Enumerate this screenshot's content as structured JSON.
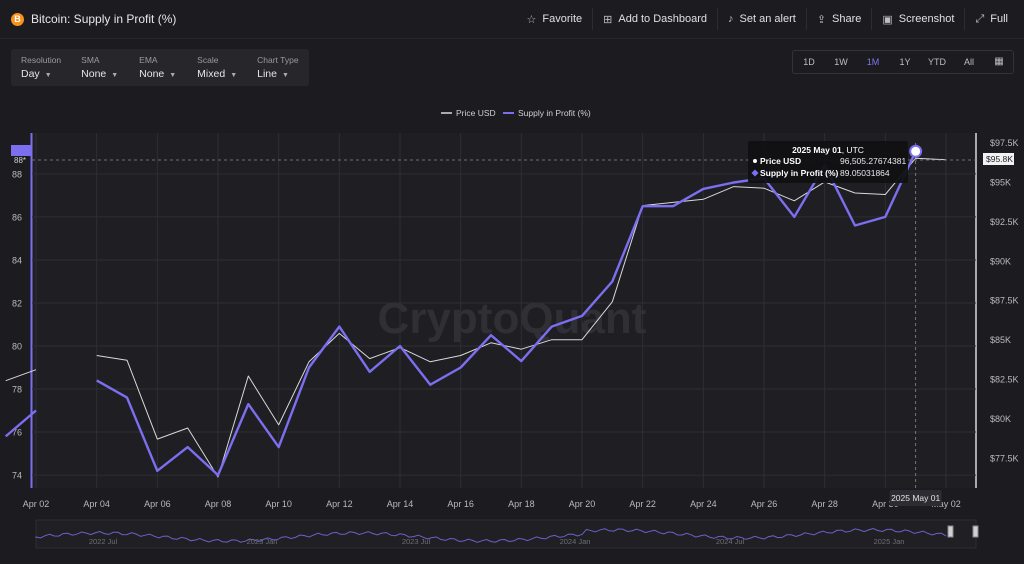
{
  "header": {
    "title": "Bitcoin: Supply in Profit (%)",
    "coin_symbol": "B",
    "actions": [
      {
        "name": "favorite",
        "label": "Favorite",
        "icon": "☆"
      },
      {
        "name": "add-to-dashboard",
        "label": "Add to Dashboard",
        "icon": "⊞"
      },
      {
        "name": "set-alert",
        "label": "Set an alert",
        "icon": "♪"
      },
      {
        "name": "share",
        "label": "Share",
        "icon": "⇪"
      },
      {
        "name": "screenshot",
        "label": "Screenshot",
        "icon": "▣"
      },
      {
        "name": "full",
        "label": "Full",
        "icon": "⤢"
      }
    ]
  },
  "controls": [
    {
      "label": "Resolution",
      "value": "Day"
    },
    {
      "label": "SMA",
      "value": "None"
    },
    {
      "label": "EMA",
      "value": "None"
    },
    {
      "label": "Scale",
      "value": "Mixed"
    },
    {
      "label": "Chart Type",
      "value": "Line"
    }
  ],
  "ranges": [
    "1D",
    "1W",
    "1M",
    "1Y",
    "YTD",
    "All"
  ],
  "active_range": "1M",
  "watermark": "CryptoQuant",
  "tooltip": {
    "date": "2025 May 01",
    "tz": ", UTC",
    "rows": [
      {
        "label": "Price USD",
        "value": "96,505.27674381"
      },
      {
        "label": "Supply in Profit (%)",
        "value": "89.05031864"
      }
    ]
  },
  "crosshair": {
    "left_label": "88*",
    "right_label": "$95.8K",
    "x_label": "2025 May 01"
  },
  "colors": {
    "price": "#d9d9d9",
    "supply": "#7b6ff0",
    "background": "#1c1c20",
    "grid": "#2e2e33"
  },
  "chart_data": {
    "type": "line",
    "legend_position": "top-center",
    "grid": true,
    "x": [
      "2025-04-01",
      "2025-04-02",
      "2025-04-03",
      "2025-04-04",
      "2025-04-05",
      "2025-04-06",
      "2025-04-07",
      "2025-04-08",
      "2025-04-09",
      "2025-04-10",
      "2025-04-11",
      "2025-04-12",
      "2025-04-13",
      "2025-04-14",
      "2025-04-15",
      "2025-04-16",
      "2025-04-17",
      "2025-04-18",
      "2025-04-19",
      "2025-04-20",
      "2025-04-21",
      "2025-04-22",
      "2025-04-23",
      "2025-04-24",
      "2025-04-25",
      "2025-04-26",
      "2025-04-27",
      "2025-04-28",
      "2025-04-29",
      "2025-04-30",
      "2025-05-01",
      "2025-05-02"
    ],
    "x_tick_labels": [
      "Apr 02",
      "Apr 04",
      "Apr 06",
      "Apr 08",
      "Apr 10",
      "Apr 12",
      "Apr 14",
      "Apr 16",
      "Apr 18",
      "Apr 20",
      "Apr 22",
      "Apr 24",
      "Apr 26",
      "Apr 28",
      "Apr 30",
      "May 02"
    ],
    "y_left": {
      "ticks": [
        74,
        76,
        78,
        80,
        82,
        84,
        86,
        88
      ],
      "range": [
        73.4,
        89.9
      ]
    },
    "y_right": {
      "ticks": [
        "$77.5K",
        "$80K",
        "$82.5K",
        "$85K",
        "$87.5K",
        "$90K",
        "$92.5K",
        "$95K",
        "$97.5K"
      ],
      "tick_values": [
        77500,
        80000,
        82500,
        85000,
        87500,
        90000,
        92500,
        95000,
        97500
      ],
      "range": [
        75600,
        98100
      ]
    },
    "series": [
      {
        "name": "Price USD",
        "axis": "right",
        "values": [
          82400,
          83100,
          null,
          84000,
          83700,
          78700,
          79400,
          76300,
          82700,
          79600,
          83600,
          85400,
          83800,
          84500,
          83600,
          84000,
          84800,
          84400,
          85000,
          85000,
          87400,
          93500,
          93700,
          93900,
          94700,
          94600,
          93800,
          95000,
          94300,
          94200,
          96505.27674381,
          96400
        ]
      },
      {
        "name": "Supply in Profit (%)",
        "axis": "left",
        "values": [
          75.8,
          77.0,
          null,
          78.4,
          77.6,
          74.2,
          75.3,
          74.0,
          77.3,
          75.3,
          79.0,
          80.9,
          78.8,
          80.0,
          78.2,
          79.0,
          80.5,
          79.3,
          80.9,
          81.4,
          83.0,
          86.5,
          86.5,
          87.3,
          87.6,
          87.8,
          86.0,
          88.4,
          85.6,
          86.0,
          89.05031864,
          null
        ]
      }
    ],
    "navigator_labels": [
      "2022 Jul",
      "2023 Jan",
      "2023 Jul",
      "2024 Jan",
      "2024 Jul",
      "2025 Jan"
    ]
  }
}
